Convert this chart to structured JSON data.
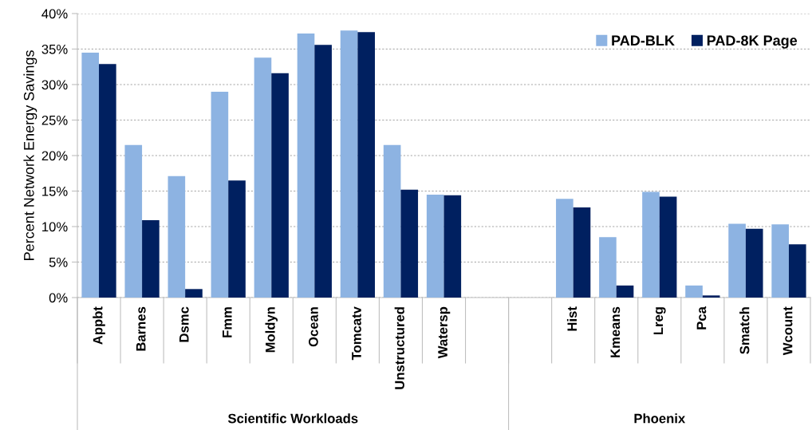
{
  "chart_data": {
    "type": "bar",
    "ylabel": "Percent Network Energy Savings",
    "categories": [
      "Appbt",
      "Barnes",
      "Dsmc",
      "Fmm",
      "Moldyn",
      "Ocean",
      "Tomcatv",
      "Unstructured",
      "Watersp",
      null,
      null,
      "Hist",
      "Kmeans",
      "Lreg",
      "Pca",
      "Smatch",
      "Wcount"
    ],
    "series": [
      {
        "name": "PAD-BLK",
        "color": "#8db3e2",
        "values": [
          34.5,
          21.5,
          17.1,
          29.0,
          33.8,
          37.2,
          37.6,
          21.5,
          14.5,
          null,
          null,
          13.9,
          8.5,
          14.9,
          1.7,
          10.4,
          10.3
        ]
      },
      {
        "name": "PAD-8K Page",
        "color": "#002060",
        "values": [
          32.9,
          10.9,
          1.2,
          16.5,
          31.6,
          35.6,
          37.4,
          15.2,
          14.4,
          null,
          null,
          12.7,
          1.7,
          14.2,
          0.3,
          9.7,
          7.5
        ]
      }
    ],
    "ylim": [
      0,
      40
    ],
    "yticks": [
      {
        "value": 0,
        "label": "0%"
      },
      {
        "value": 5,
        "label": "5%"
      },
      {
        "value": 10,
        "label": "10%"
      },
      {
        "value": 15,
        "label": "15%"
      },
      {
        "value": 20,
        "label": "20%"
      },
      {
        "value": 25,
        "label": "25%"
      },
      {
        "value": 30,
        "label": "30%"
      },
      {
        "value": 35,
        "label": "35%"
      },
      {
        "value": 40,
        "label": "40%"
      }
    ],
    "grid": "y",
    "legend": "top right",
    "annotations": [
      "Scientific Workloads",
      "Phoenix"
    ]
  }
}
